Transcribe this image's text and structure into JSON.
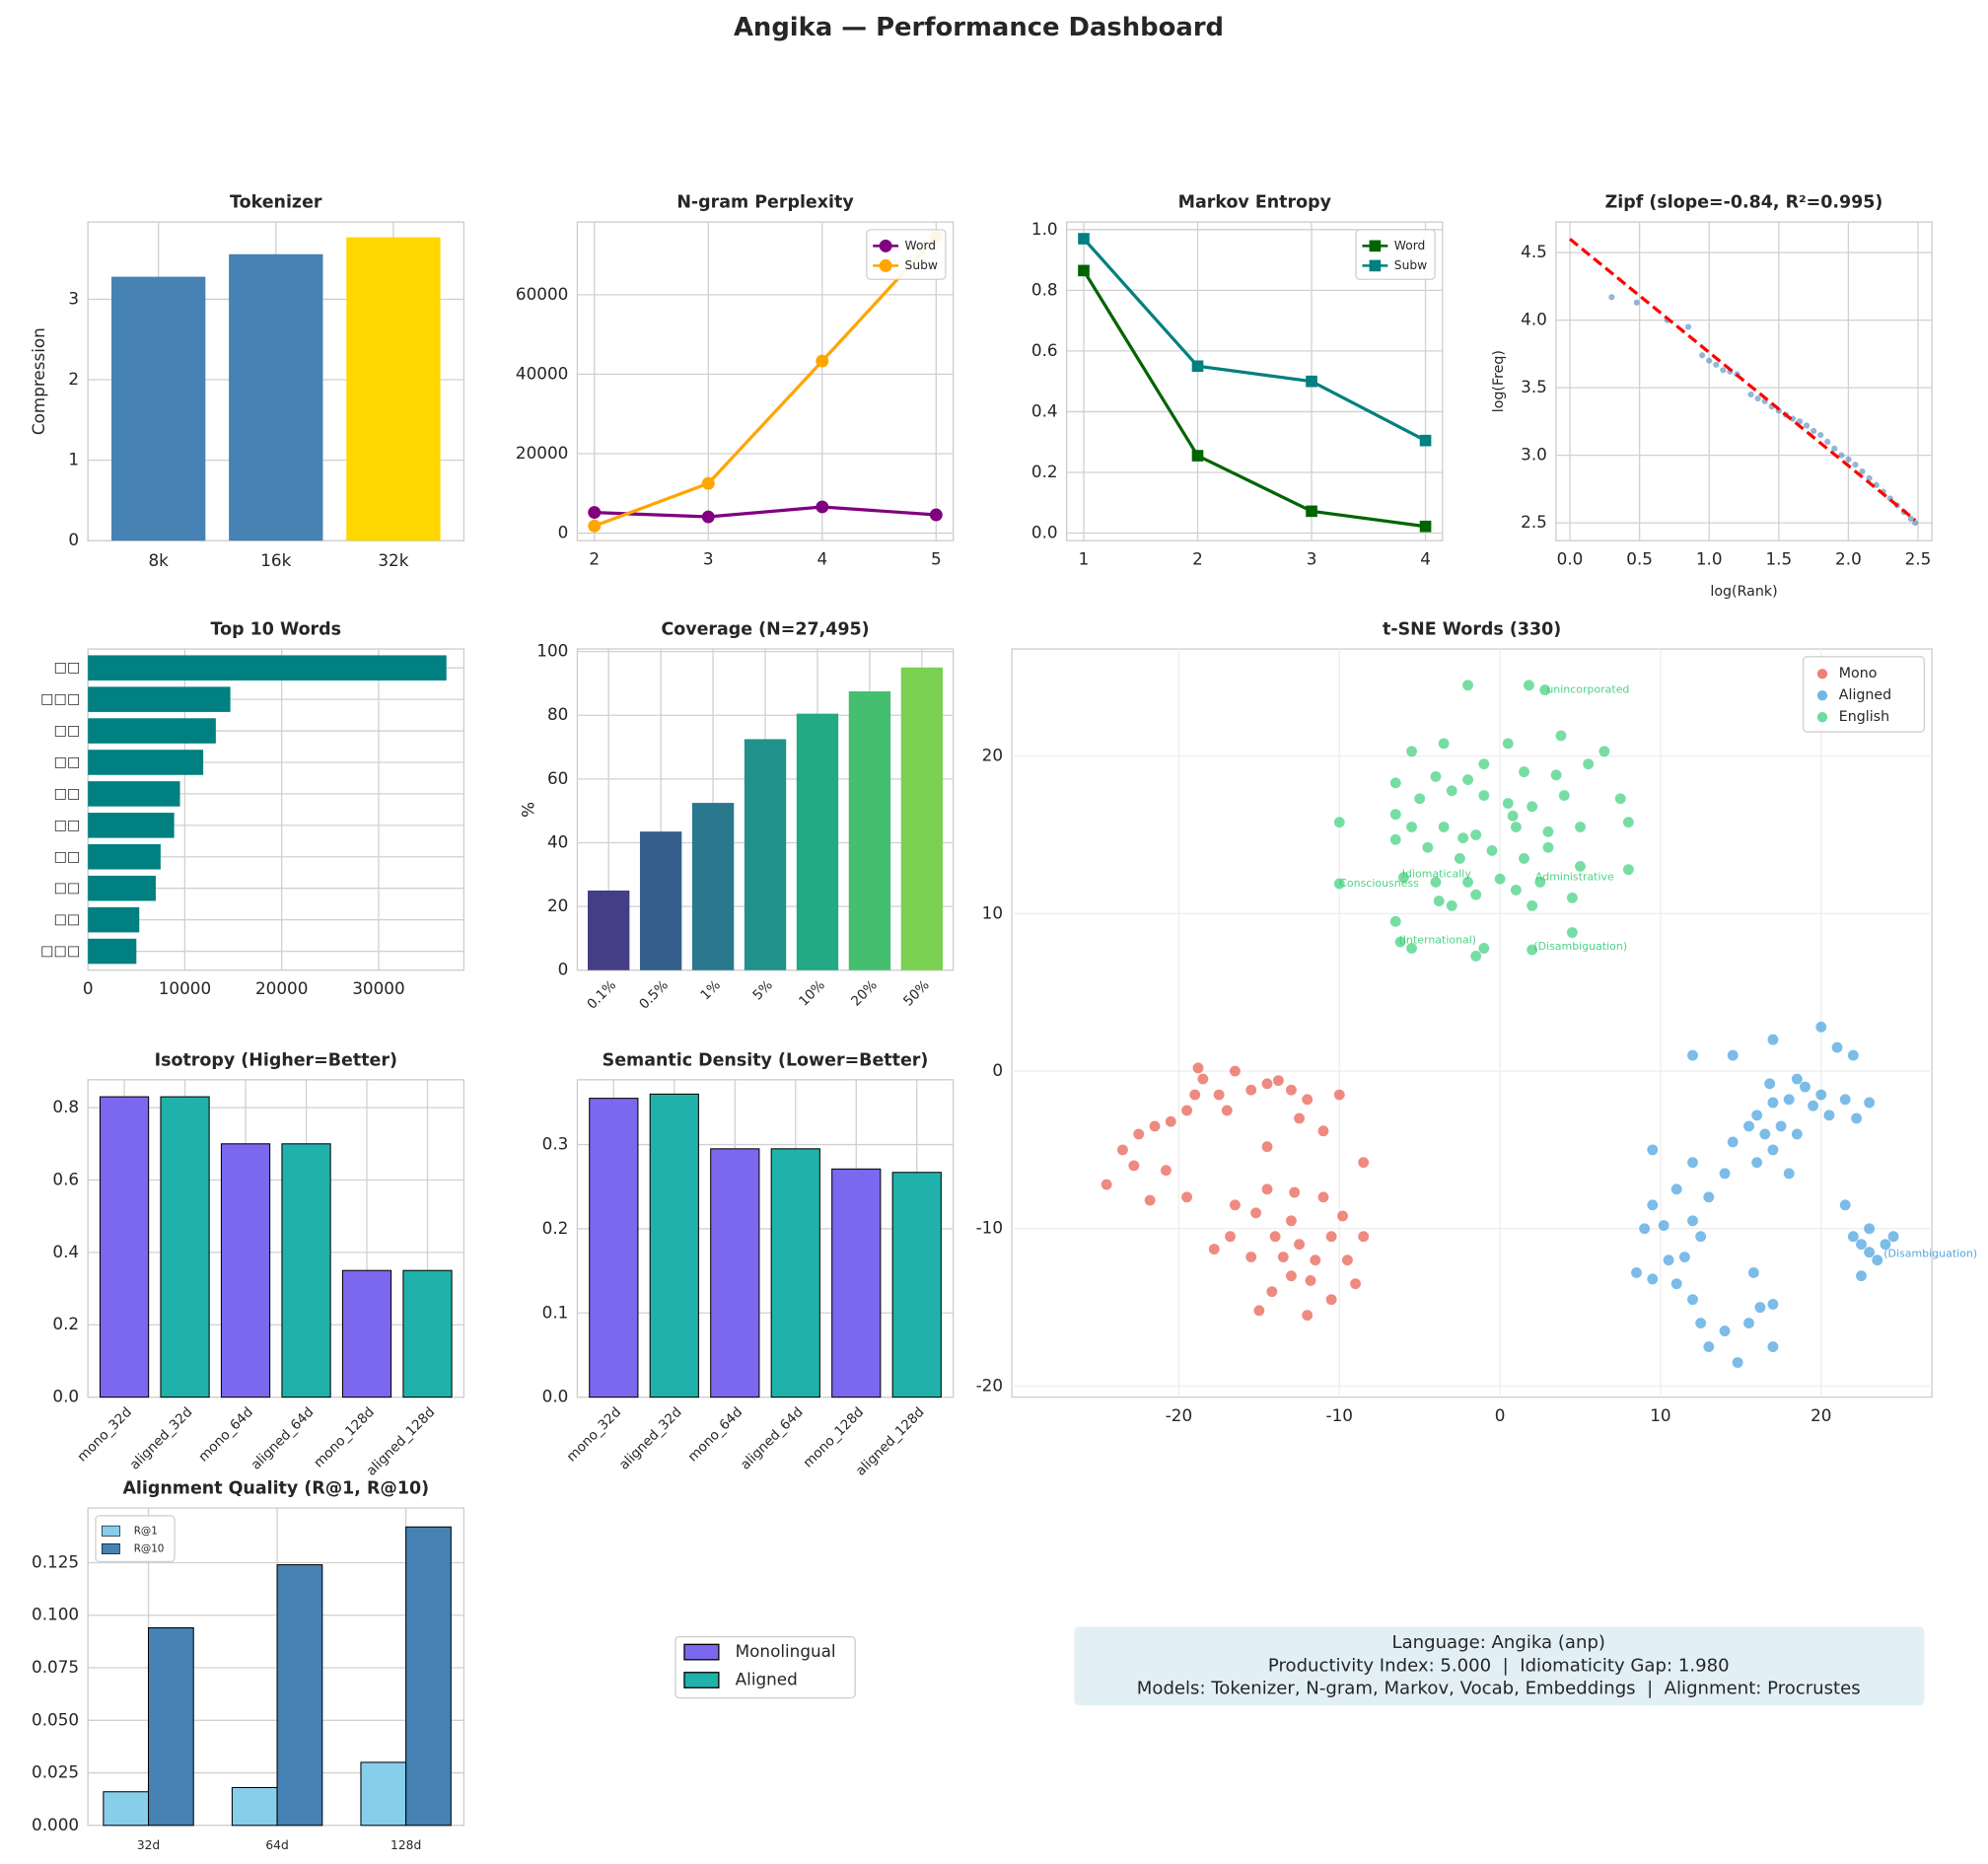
{
  "title": "Angika — Performance Dashboard",
  "chart_data": [
    {
      "type": "bar",
      "title": "Tokenizer",
      "ylabel": "Compression",
      "categories": [
        "8k",
        "16k",
        "32k"
      ],
      "values": [
        3.28,
        3.56,
        3.77
      ],
      "colors": [
        "#4682b4",
        "#4682b4",
        "#ffd700"
      ],
      "ylim": [
        0,
        3.96
      ],
      "yticks": [
        0,
        1,
        2,
        3
      ],
      "grid": true
    },
    {
      "type": "line",
      "title": "N-gram Perplexity",
      "x": [
        2,
        3,
        4,
        5
      ],
      "xlim": [
        1.85,
        5.15
      ],
      "xticks": [
        2,
        3,
        4,
        5
      ],
      "ylim": [
        -1900,
        78300
      ],
      "yticks": [
        0,
        20000,
        40000,
        60000
      ],
      "grid": true,
      "legend": "upper right",
      "series": [
        {
          "name": "Word",
          "color": "#800080",
          "marker": "o",
          "values": [
            5200,
            4100,
            6600,
            4600
          ]
        },
        {
          "name": "Subw",
          "color": "#ffa500",
          "marker": "o",
          "values": [
            1800,
            12500,
            43300,
            74500
          ]
        }
      ]
    },
    {
      "type": "line",
      "title": "Markov Entropy",
      "x": [
        1,
        2,
        3,
        4
      ],
      "xlim": [
        0.85,
        4.15
      ],
      "xticks": [
        1,
        2,
        3,
        4
      ],
      "ylim": [
        -0.025,
        1.025
      ],
      "yticks": [
        {
          "value": 0,
          "label": "0.0"
        },
        0.2,
        0.4,
        0.6,
        0.8,
        {
          "value": 1,
          "label": "1.0"
        }
      ],
      "grid": true,
      "legend": "upper right",
      "series": [
        {
          "name": "Word",
          "color": "#006400",
          "marker": "s",
          "values": [
            0.865,
            0.255,
            0.072,
            0.022
          ]
        },
        {
          "name": "Subw",
          "color": "#008080",
          "marker": "s",
          "values": [
            0.97,
            0.55,
            0.5,
            0.305
          ]
        }
      ]
    },
    {
      "type": "scatter",
      "title": "Zipf (slope=-0.84, R²=0.995)",
      "xlabel": "log(Rank)",
      "ylabel": "log(Freq)",
      "color": "#4a86c0",
      "x": [
        0.3,
        0.48,
        0.7,
        0.85,
        0.95,
        1.0,
        1.05,
        1.1,
        1.15,
        1.2,
        1.3,
        1.35,
        1.4,
        1.45,
        1.5,
        1.55,
        1.6,
        1.65,
        1.7,
        1.75,
        1.8,
        1.85,
        1.9,
        1.95,
        2.0,
        2.05,
        2.1,
        2.15,
        2.2,
        2.25,
        2.3,
        2.35,
        2.4,
        2.45,
        2.48
      ],
      "values": [
        4.17,
        4.13,
        4.0,
        3.95,
        3.74,
        3.7,
        3.67,
        3.63,
        3.62,
        3.6,
        3.45,
        3.42,
        3.4,
        3.36,
        3.33,
        3.3,
        3.27,
        3.25,
        3.22,
        3.18,
        3.15,
        3.1,
        3.05,
        3.0,
        2.97,
        2.93,
        2.88,
        2.83,
        2.78,
        2.73,
        2.68,
        2.63,
        2.58,
        2.53,
        2.5
      ],
      "fit": {
        "color": "#ff0000",
        "x": [
          0,
          2.48
        ],
        "values": [
          4.6,
          2.52
        ]
      },
      "xlim": [
        -0.1,
        2.6
      ],
      "xticks": [
        {
          "value": 0,
          "label": "0.0"
        },
        0.5,
        {
          "value": 1,
          "label": "1.0"
        },
        1.5,
        {
          "value": 2,
          "label": "2.0"
        },
        2.5
      ],
      "ylim": [
        2.368,
        4.726
      ],
      "yticks": [
        2.5,
        {
          "value": 3,
          "label": "3.0"
        },
        3.5,
        {
          "value": 4,
          "label": "4.0"
        },
        4.5
      ],
      "grid": true
    },
    {
      "type": "barh",
      "title": "Top 10 Words",
      "categories": [
        "□□",
        "□□□",
        "□□",
        "□□",
        "□□",
        "□□",
        "□□",
        "□□",
        "□□",
        "□□□"
      ],
      "values": [
        37000,
        14700,
        13200,
        11900,
        9500,
        8900,
        7500,
        7000,
        5300,
        5000
      ],
      "color": "#008080",
      "xlim": [
        0,
        38800
      ],
      "xticks": [
        0,
        10000,
        20000,
        30000
      ],
      "grid": true
    },
    {
      "type": "bar",
      "title": "Coverage (N=27,495)",
      "ylabel": "%",
      "categories": [
        "0.1%",
        "0.5%",
        "1%",
        "5%",
        "10%",
        "20%",
        "50%"
      ],
      "values": [
        25,
        43.5,
        52.5,
        72.5,
        80.5,
        87.5,
        95
      ],
      "colors": [
        "#433e85",
        "#355f8d",
        "#2a788e",
        "#21918c",
        "#23a983",
        "#44bf70",
        "#7ad151"
      ],
      "xtick_rotation": 45,
      "ylim": [
        0,
        100.8
      ],
      "yticks": [
        0,
        20,
        40,
        60,
        80,
        100
      ],
      "grid": true
    },
    {
      "type": "scatter",
      "title": "t-SNE Words (330)",
      "xlim": [
        -30.4,
        26.9
      ],
      "xticks": [
        -20,
        -10,
        0,
        10,
        20
      ],
      "ylim": [
        -20.7,
        26.8
      ],
      "yticks": [
        -20,
        -10,
        0,
        10,
        20
      ],
      "grid": true,
      "legend": "upper right",
      "series": [
        {
          "name": "Mono",
          "color": "#e74c3c",
          "x": [
            -24.5,
            -23.5,
            -22.8,
            -22.5,
            -21.8,
            -21.5,
            -20.5,
            -20.8,
            -19.5,
            -19,
            -18.5,
            -18.8,
            -17.5,
            -17,
            -16.5,
            -15.5,
            -14.5,
            -13.8,
            -13,
            -12,
            -11,
            -10,
            -14.5,
            -12.5,
            -8.5,
            -19.5,
            -16.5,
            -15.2,
            -14,
            -13,
            -12.5,
            -11.5,
            -10.5,
            -9.5,
            -8.5,
            -9,
            -10.5,
            -12,
            -13,
            -14.2,
            -15,
            -15.5,
            -16.8,
            -17.8,
            -11,
            -9.8,
            -12.8,
            -14.5,
            -11.8,
            -13.5
          ],
          "values": [
            -7.2,
            -5,
            -6,
            -4,
            -8.2,
            -3.5,
            -3.2,
            -6.3,
            -2.5,
            -1.5,
            -0.5,
            0.2,
            -1.5,
            -2.5,
            0,
            -1.2,
            -0.8,
            -0.6,
            -1.2,
            -1.8,
            -3.8,
            -1.5,
            -4.8,
            -3,
            -5.8,
            -8,
            -8.5,
            -9,
            -10.5,
            -9.5,
            -11,
            -12,
            -10.5,
            -12,
            -10.5,
            -13.5,
            -14.5,
            -15.5,
            -13,
            -14,
            -15.2,
            -11.8,
            -10.5,
            -11.3,
            -8,
            -9.2,
            -7.7,
            -7.5,
            -13.3,
            -11.8
          ]
        },
        {
          "name": "Aligned",
          "color": "#3498db",
          "x": [
            12,
            14.5,
            17,
            20,
            21,
            22,
            18.5,
            19,
            20,
            21.5,
            23,
            22.2,
            20.5,
            19.5,
            18,
            17,
            16,
            15.5,
            16.5,
            17.5,
            18.5,
            17,
            18,
            16,
            14.5,
            12,
            11,
            9.5,
            9,
            8.5,
            9.5,
            10.5,
            11,
            12,
            12.5,
            13,
            14,
            14.8,
            15.5,
            16.2,
            17,
            17,
            15.8,
            12.5,
            12,
            13,
            9.5,
            21.5,
            22,
            22.5,
            23,
            23.5,
            23,
            22.5,
            24,
            24.5,
            11.5,
            10.2,
            14,
            16.8
          ],
          "values": [
            1,
            1,
            2,
            2.8,
            1.5,
            1,
            -0.5,
            -1,
            -1.5,
            -1.8,
            -2,
            -3,
            -2.8,
            -2.2,
            -1.8,
            -2,
            -2.8,
            -3.5,
            -4,
            -3.5,
            -4,
            -5,
            -6.5,
            -5.8,
            -4.5,
            -5.8,
            -7.5,
            -8.5,
            -10,
            -12.8,
            -13.2,
            -12,
            -13.5,
            -14.5,
            -16,
            -17.5,
            -16.5,
            -18.5,
            -16,
            -15,
            -17.5,
            -14.8,
            -12.8,
            -10.5,
            -9.5,
            -8,
            -5,
            -8.5,
            -10.5,
            -11,
            -11.5,
            -12,
            -10,
            -13,
            -11,
            -10.5,
            -11.8,
            -9.8,
            -6.5,
            -0.8
          ]
        },
        {
          "name": "English",
          "color": "#2ecc71",
          "x": [
            -2,
            1.8,
            2.8,
            3.8,
            6.5,
            5.5,
            -3.5,
            -5.5,
            0.5,
            -1,
            1.5,
            3.5,
            -2,
            -4,
            -6.5,
            -3,
            -5,
            -1,
            0.5,
            2,
            4,
            7.5,
            8,
            5,
            3,
            1,
            -1.5,
            -3.5,
            -5.5,
            -6.5,
            -6.5,
            -4.5,
            -2.5,
            -0.5,
            1.5,
            3,
            5,
            -6,
            -4,
            -2,
            0,
            2.5,
            4.5,
            8,
            -10,
            -10,
            -3,
            -1.5,
            1,
            2,
            -6.5,
            -6.2,
            -5.5,
            -1.5,
            -1,
            2,
            4.5,
            -3.8,
            0.8,
            -2.3
          ],
          "values": [
            24.5,
            24.5,
            24.2,
            21.3,
            20.3,
            19.5,
            20.8,
            20.3,
            20.8,
            19.5,
            19,
            18.8,
            18.5,
            18.7,
            18.3,
            17.8,
            17.3,
            17.5,
            17,
            16.8,
            17.5,
            17.3,
            15.8,
            15.5,
            15.2,
            15.5,
            15,
            15.5,
            15.5,
            16.3,
            14.7,
            14.2,
            13.5,
            14,
            13.5,
            14.2,
            13,
            12.3,
            12,
            12,
            12.2,
            12,
            11,
            12.8,
            15.8,
            11.9,
            10.5,
            11.2,
            11.5,
            10.5,
            9.5,
            8.2,
            7.8,
            7.3,
            7.8,
            7.7,
            8.8,
            10.8,
            16.2,
            14.8
          ]
        }
      ],
      "annotations": [
        {
          "text": "unincorporated",
          "x": 2.9,
          "y": 24.2,
          "color": "#2ecc71"
        },
        {
          "text": "Consciousness",
          "x": -10,
          "y": 11.9,
          "color": "#2ecc71"
        },
        {
          "text": "Idiomatically",
          "x": -6.1,
          "y": 12.5,
          "color": "#2ecc71"
        },
        {
          "text": "Administrative",
          "x": 2.2,
          "y": 12.3,
          "color": "#2ecc71"
        },
        {
          "text": "(International)",
          "x": -6.3,
          "y": 8.3,
          "color": "#2ecc71"
        },
        {
          "text": "(Disambiguation)",
          "x": 2.1,
          "y": 7.9,
          "color": "#2ecc71"
        },
        {
          "text": "(Disambiguation)",
          "x": 23.9,
          "y": -11.6,
          "color": "#3498db"
        }
      ]
    },
    {
      "type": "bar",
      "title": "Isotropy (Higher=Better)",
      "categories": [
        "mono_32d",
        "aligned_32d",
        "mono_64d",
        "aligned_64d",
        "mono_128d",
        "aligned_128d"
      ],
      "values": [
        0.83,
        0.83,
        0.7,
        0.7,
        0.35,
        0.35
      ],
      "colors": [
        "#7b68ee",
        "#20b2aa",
        "#7b68ee",
        "#20b2aa",
        "#7b68ee",
        "#20b2aa"
      ],
      "edgecolor": "#000000",
      "xtick_rotation": 45,
      "ylim": [
        0,
        0.877
      ],
      "yticks": [
        {
          "value": 0,
          "label": "0.0"
        },
        0.2,
        0.4,
        0.6,
        0.8
      ],
      "grid": true
    },
    {
      "type": "bar",
      "title": "Semantic Density (Lower=Better)",
      "categories": [
        "mono_32d",
        "aligned_32d",
        "mono_64d",
        "aligned_64d",
        "mono_128d",
        "aligned_128d"
      ],
      "values": [
        0.355,
        0.36,
        0.295,
        0.295,
        0.271,
        0.267
      ],
      "colors": [
        "#7b68ee",
        "#20b2aa",
        "#7b68ee",
        "#20b2aa",
        "#7b68ee",
        "#20b2aa"
      ],
      "edgecolor": "#000000",
      "xtick_rotation": 45,
      "ylim": [
        0,
        0.377
      ],
      "yticks": [
        {
          "value": 0,
          "label": "0.0"
        },
        0.1,
        0.2,
        0.3
      ],
      "grid": true
    },
    {
      "type": "grouped_bar",
      "title": "Alignment Quality (R@1, R@10)",
      "categories": [
        "32d",
        "64d",
        "128d"
      ],
      "edgecolor": "#000000",
      "legend": "upper left",
      "series": [
        {
          "name": "R@1",
          "color": "#87ceeb",
          "values": [
            0.016,
            0.018,
            0.03
          ]
        },
        {
          "name": "R@10",
          "color": "#4682b4",
          "values": [
            0.094,
            0.124,
            0.142
          ]
        }
      ],
      "ylim": [
        0,
        0.151
      ],
      "yticks": [
        {
          "value": 0,
          "label": "0.000"
        },
        {
          "value": 0.025,
          "label": "0.025"
        },
        {
          "value": 0.05,
          "label": "0.050"
        },
        {
          "value": 0.075,
          "label": "0.075"
        },
        {
          "value": 0.1,
          "label": "0.100"
        },
        {
          "value": 0.125,
          "label": "0.125"
        }
      ],
      "grid": true
    }
  ],
  "shared_legend": {
    "series": [
      {
        "name": "Monolingual",
        "color": "#7b68ee"
      },
      {
        "name": "Aligned",
        "color": "#20b2aa"
      }
    ]
  },
  "info": [
    "Language: Angika (anp)",
    "Productivity Index: 5.000  |  Idiomaticity Gap: 1.980",
    "Models: Tokenizer, N-gram, Markov, Vocab, Embeddings  |  Alignment: Procrustes"
  ]
}
